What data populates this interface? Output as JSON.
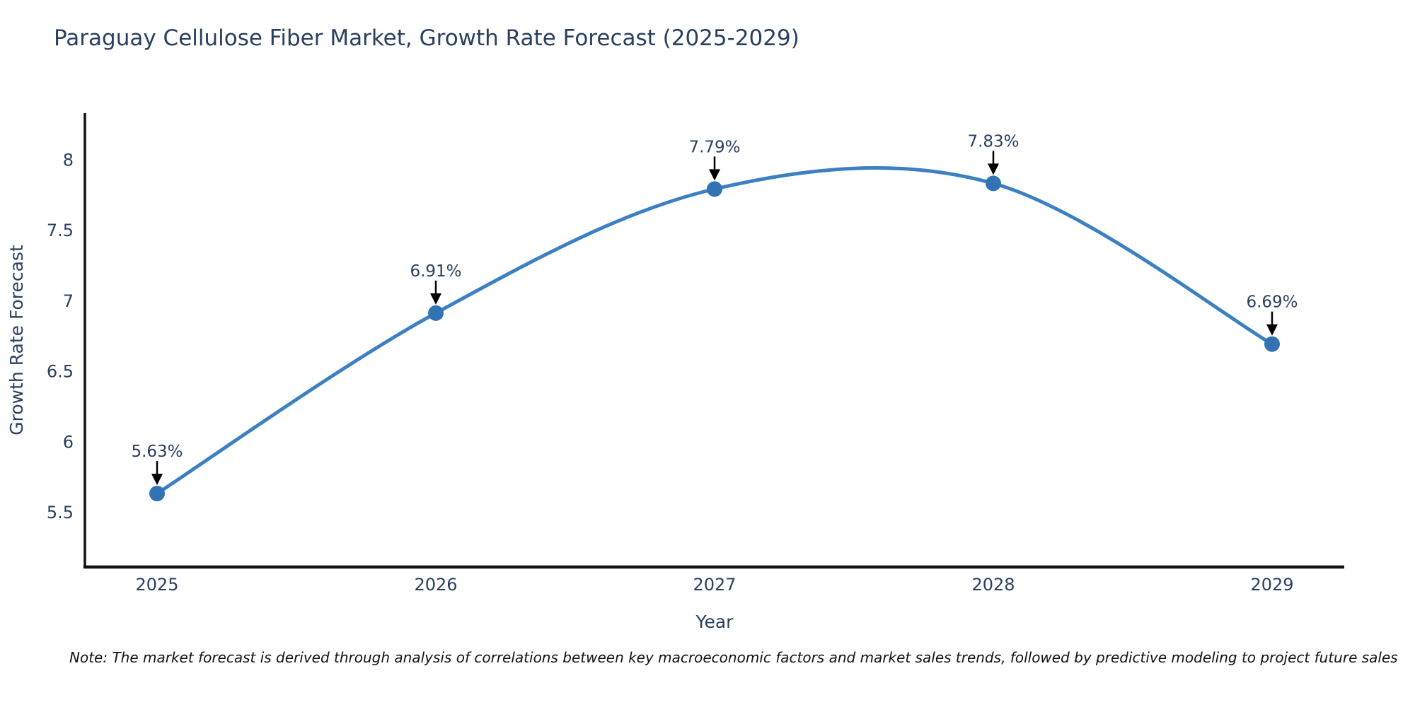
{
  "title": "Paraguay Cellulose Fiber Market, Growth Rate Forecast (2025-2029)",
  "note": "Note: The market forecast is derived through analysis of correlations between key macroeconomic factors and market sales trends, followed by predictive modeling to project future sales",
  "chart_data": {
    "type": "line",
    "title": "Paraguay Cellulose Fiber Market, Growth Rate Forecast (2025-2029)",
    "xlabel": "Year",
    "ylabel": "Growth Rate Forecast",
    "categories": [
      "2025",
      "2026",
      "2027",
      "2028",
      "2029"
    ],
    "x": [
      2025,
      2026,
      2027,
      2028,
      2029
    ],
    "series": [
      {
        "name": "Growth Rate Forecast",
        "values": [
          5.63,
          6.91,
          7.79,
          7.83,
          6.69
        ]
      }
    ],
    "point_labels": [
      "5.63%",
      "6.91%",
      "7.79%",
      "7.83%",
      "6.69%"
    ],
    "ytick_labels": [
      "5.5",
      "6",
      "6.5",
      "7",
      "7.5",
      "8"
    ],
    "yticks": [
      5.5,
      6,
      6.5,
      7,
      7.5,
      8
    ],
    "ylim": [
      5.1,
      8.3
    ],
    "line_shape": "spline",
    "grid": false,
    "legend_position": "none",
    "colors": {
      "line": "#3d80c2",
      "marker": "#3273b3",
      "axis": "#111111",
      "text": "#2a3f5f",
      "arrow": "#000000",
      "background": "#ffffff"
    }
  }
}
